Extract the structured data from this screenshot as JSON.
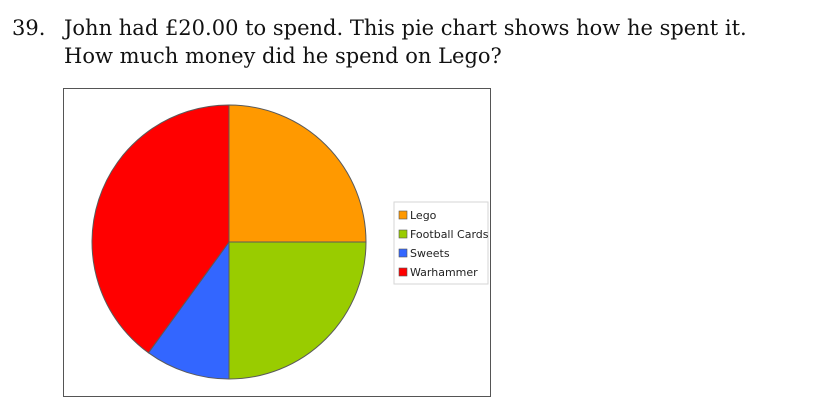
{
  "question": {
    "number": "39.",
    "text": "John had £20.00 to spend. This pie chart shows how he spent it. How much money did he spend on Lego?"
  },
  "chart_data": {
    "type": "pie",
    "categories": [
      "Lego",
      "Football Cards",
      "Sweets",
      "Warhammer"
    ],
    "values": [
      25,
      25,
      10,
      40
    ],
    "colors": [
      "#ff9900",
      "#99cc00",
      "#3366ff",
      "#ff0000"
    ],
    "start": "12 o'clock",
    "direction": "clockwise",
    "legend": "right",
    "title": ""
  }
}
